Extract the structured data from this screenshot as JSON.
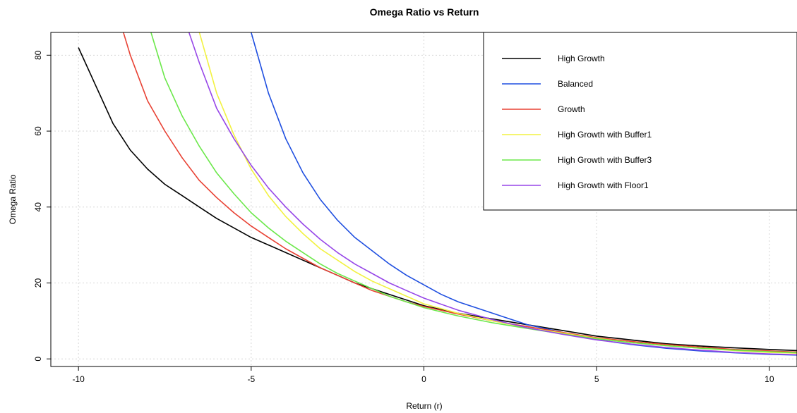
{
  "chart_data": {
    "type": "line",
    "title": "Omega Ratio vs Return",
    "xlabel": "Return (r)",
    "ylabel": "Omega Ratio",
    "xlim": [
      -10.8,
      10.8
    ],
    "ylim": [
      -2,
      86
    ],
    "xticks": [
      -10,
      -5,
      0,
      5,
      10
    ],
    "yticks": [
      0,
      20,
      40,
      60,
      80
    ],
    "grid": true,
    "legend_position": "top-right",
    "series": [
      {
        "name": "High Growth",
        "color": "#000000",
        "points": [
          [
            -10,
            82
          ],
          [
            -9.5,
            72
          ],
          [
            -9,
            62
          ],
          [
            -8.5,
            55
          ],
          [
            -8,
            50
          ],
          [
            -7.5,
            46
          ],
          [
            -7,
            43
          ],
          [
            -6.5,
            40
          ],
          [
            -6,
            37
          ],
          [
            -5.5,
            34.5
          ],
          [
            -5,
            32
          ],
          [
            -4.5,
            30
          ],
          [
            -4,
            28
          ],
          [
            -3.5,
            26
          ],
          [
            -3,
            24
          ],
          [
            -2.5,
            22
          ],
          [
            -2,
            20
          ],
          [
            -1.5,
            18.5
          ],
          [
            -1,
            17
          ],
          [
            -0.5,
            15.5
          ],
          [
            0,
            14
          ],
          [
            1,
            12
          ],
          [
            2,
            10.5
          ],
          [
            3,
            9
          ],
          [
            4,
            7.5
          ],
          [
            5,
            6
          ],
          [
            6,
            5
          ],
          [
            7,
            4
          ],
          [
            8,
            3.4
          ],
          [
            9,
            2.9
          ],
          [
            10,
            2.5
          ],
          [
            10.8,
            2.2
          ]
        ]
      },
      {
        "name": "Balanced",
        "color": "#1f4fe0",
        "points": [
          [
            -5,
            86
          ],
          [
            -4.75,
            78
          ],
          [
            -4.5,
            70
          ],
          [
            -4,
            58
          ],
          [
            -3.5,
            49
          ],
          [
            -3,
            42
          ],
          [
            -2.5,
            36.5
          ],
          [
            -2,
            32
          ],
          [
            -1.5,
            28.5
          ],
          [
            -1,
            25
          ],
          [
            -0.5,
            22
          ],
          [
            0,
            19.5
          ],
          [
            0.5,
            17
          ],
          [
            1,
            15
          ],
          [
            1.5,
            13.5
          ],
          [
            2,
            12
          ],
          [
            2.5,
            10.5
          ],
          [
            3,
            9
          ],
          [
            3.5,
            8
          ],
          [
            4,
            7
          ],
          [
            4.5,
            6
          ],
          [
            5,
            5.2
          ],
          [
            5.5,
            4.4
          ],
          [
            6,
            3.8
          ],
          [
            7,
            2.8
          ],
          [
            8,
            2.1
          ],
          [
            9,
            1.6
          ],
          [
            10,
            1.2
          ],
          [
            10.8,
            1.0
          ]
        ]
      },
      {
        "name": "Growth",
        "color": "#e84133",
        "points": [
          [
            -8.7,
            86
          ],
          [
            -8.5,
            80
          ],
          [
            -8,
            68
          ],
          [
            -7.5,
            60
          ],
          [
            -7,
            53
          ],
          [
            -6.5,
            47
          ],
          [
            -6,
            42.5
          ],
          [
            -5.5,
            38.5
          ],
          [
            -5,
            35
          ],
          [
            -4.5,
            32
          ],
          [
            -4,
            29
          ],
          [
            -3.5,
            26.5
          ],
          [
            -3,
            24
          ],
          [
            -2.5,
            22
          ],
          [
            -2,
            20
          ],
          [
            -1.5,
            18
          ],
          [
            -1,
            16.5
          ],
          [
            -0.5,
            15
          ],
          [
            0,
            13.8
          ],
          [
            1,
            11.8
          ],
          [
            2,
            10
          ],
          [
            3,
            8.5
          ],
          [
            4,
            7
          ],
          [
            5,
            5.6
          ],
          [
            6,
            4.6
          ],
          [
            7,
            3.8
          ],
          [
            8,
            3.1
          ],
          [
            9,
            2.5
          ],
          [
            10,
            2.1
          ],
          [
            10.8,
            1.8
          ]
        ]
      },
      {
        "name": "High Growth with Buffer1",
        "color": "#f2f241",
        "points": [
          [
            -6.5,
            86
          ],
          [
            -6.25,
            78
          ],
          [
            -6,
            70
          ],
          [
            -5.5,
            59
          ],
          [
            -5,
            50
          ],
          [
            -4.5,
            43
          ],
          [
            -4,
            37.5
          ],
          [
            -3.5,
            33
          ],
          [
            -3,
            29
          ],
          [
            -2.5,
            26
          ],
          [
            -2,
            23
          ],
          [
            -1.5,
            20.5
          ],
          [
            -1,
            18.5
          ],
          [
            -0.5,
            16.5
          ],
          [
            0,
            14.5
          ],
          [
            1,
            12
          ],
          [
            2,
            10
          ],
          [
            3,
            8.2
          ],
          [
            4,
            6.8
          ],
          [
            5,
            5.4
          ],
          [
            6,
            4.3
          ],
          [
            7,
            3.5
          ],
          [
            8,
            2.8
          ],
          [
            9,
            2.2
          ],
          [
            10,
            1.7
          ],
          [
            10.8,
            1.5
          ]
        ]
      },
      {
        "name": "High Growth with Buffer3",
        "color": "#6be84a",
        "points": [
          [
            -7.9,
            86
          ],
          [
            -7.5,
            74
          ],
          [
            -7,
            64
          ],
          [
            -6.5,
            56
          ],
          [
            -6,
            49
          ],
          [
            -5.5,
            43.5
          ],
          [
            -5,
            38.5
          ],
          [
            -4.5,
            34.5
          ],
          [
            -4,
            31
          ],
          [
            -3.5,
            28
          ],
          [
            -3,
            25
          ],
          [
            -2.5,
            22.5
          ],
          [
            -2,
            20.5
          ],
          [
            -1.5,
            18.5
          ],
          [
            -1,
            16.5
          ],
          [
            -0.5,
            15
          ],
          [
            0,
            13.5
          ],
          [
            1,
            11.3
          ],
          [
            2,
            9.5
          ],
          [
            3,
            8
          ],
          [
            4,
            6.6
          ],
          [
            5,
            5.3
          ],
          [
            6,
            4.3
          ],
          [
            7,
            3.5
          ],
          [
            8,
            2.8
          ],
          [
            9,
            2.3
          ],
          [
            10,
            1.9
          ],
          [
            10.8,
            1.6
          ]
        ]
      },
      {
        "name": "High Growth with Floor1",
        "color": "#9747e8",
        "points": [
          [
            -6.8,
            86
          ],
          [
            -6.5,
            78
          ],
          [
            -6,
            66
          ],
          [
            -5.5,
            58
          ],
          [
            -5,
            51
          ],
          [
            -4.5,
            45
          ],
          [
            -4,
            40
          ],
          [
            -3.5,
            35.5
          ],
          [
            -3,
            31.5
          ],
          [
            -2.5,
            28
          ],
          [
            -2,
            25
          ],
          [
            -1.5,
            22.5
          ],
          [
            -1,
            20
          ],
          [
            -0.5,
            18
          ],
          [
            0,
            16
          ],
          [
            1,
            12.8
          ],
          [
            2,
            10.3
          ],
          [
            3,
            8.2
          ],
          [
            4,
            6.5
          ],
          [
            5,
            5
          ],
          [
            6,
            3.9
          ],
          [
            7,
            3
          ],
          [
            8,
            2.3
          ],
          [
            9,
            1.7
          ],
          [
            10,
            1.3
          ],
          [
            10.8,
            1.1
          ]
        ]
      }
    ]
  }
}
